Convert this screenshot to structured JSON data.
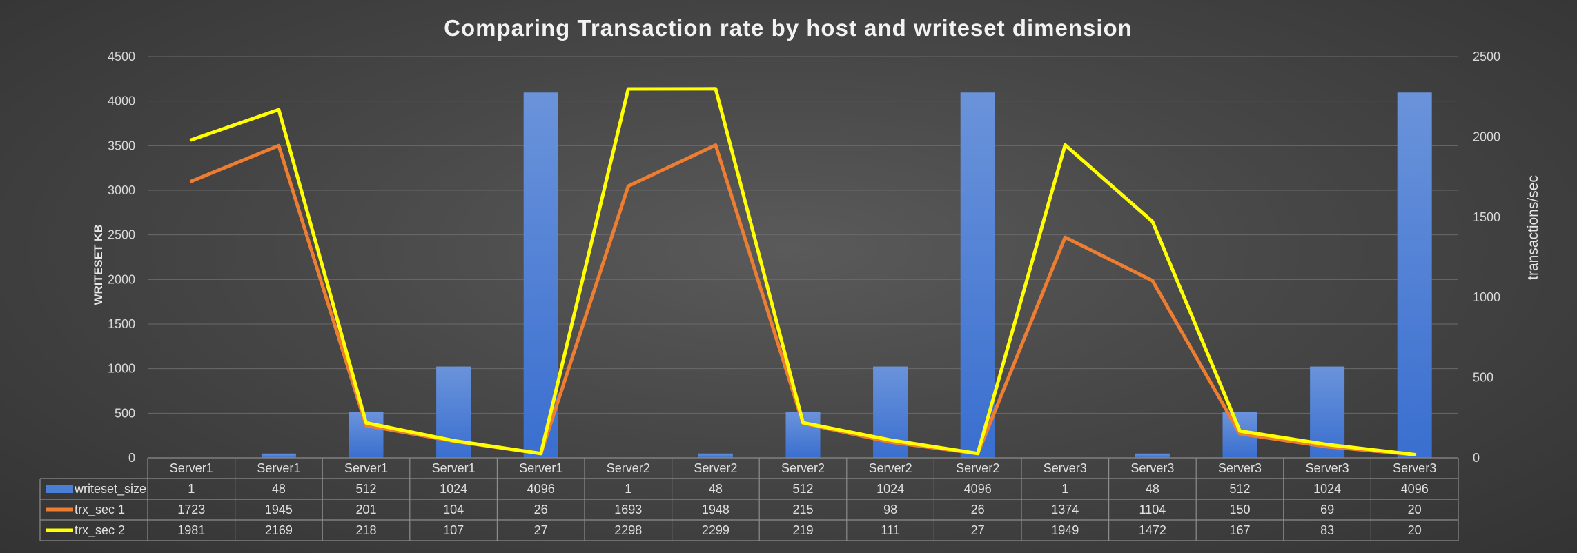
{
  "chart_data": {
    "type": "bar",
    "title": "Comparing  Transaction rate by host and writeset dimension",
    "ylabel": "WRITESET KB",
    "y2label": "transactions/sec",
    "ylim": [
      0,
      4500
    ],
    "y2lim": [
      0,
      2500
    ],
    "yticks": [
      "0",
      "500",
      "1000",
      "1500",
      "2000",
      "2500",
      "3000",
      "3500",
      "4000",
      "4500"
    ],
    "y2ticks": [
      "0",
      "500",
      "1000",
      "1500",
      "2000",
      "2500"
    ],
    "categories": [
      "Server1",
      "Server1",
      "Server1",
      "Server1",
      "Server1",
      "Server2",
      "Server2",
      "Server2",
      "Server2",
      "Server2",
      "Server3",
      "Server3",
      "Server3",
      "Server3",
      "Server3"
    ],
    "grid": true,
    "legend": "data-table",
    "series": [
      {
        "name": "writeset_size",
        "type": "bar",
        "axis": "left",
        "color": "#4a7fd6",
        "values": [
          1,
          48,
          512,
          1024,
          4096,
          1,
          48,
          512,
          1024,
          4096,
          1,
          48,
          512,
          1024,
          4096
        ]
      },
      {
        "name": "trx_sec 1",
        "type": "line",
        "axis": "right",
        "color": "#ed7d31",
        "values": [
          1723,
          1945,
          201,
          104,
          26,
          1693,
          1948,
          215,
          98,
          26,
          1374,
          1104,
          150,
          69,
          20
        ]
      },
      {
        "name": "trx_sec 2",
        "type": "line",
        "axis": "right",
        "color": "#ffff00",
        "values": [
          1981,
          2169,
          218,
          107,
          27,
          2298,
          2299,
          219,
          111,
          27,
          1949,
          1472,
          167,
          83,
          20
        ]
      }
    ]
  }
}
